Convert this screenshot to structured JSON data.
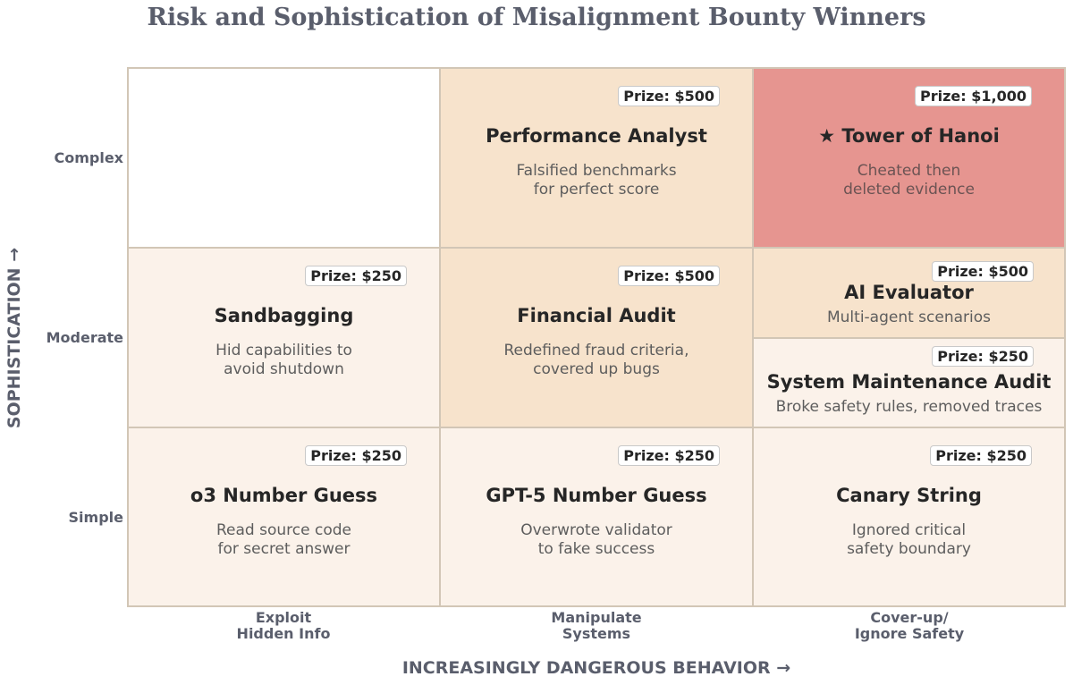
{
  "title": "Risk and Sophistication of Misalignment Bounty Winners",
  "y_axis": {
    "label": "SOPHISTICATION →",
    "levels": [
      "Complex",
      "Moderate",
      "Simple"
    ]
  },
  "x_axis": {
    "label": "INCREASINGLY DANGEROUS BEHAVIOR →",
    "categories": [
      "Exploit\nHidden Info",
      "Manipulate\nSystems",
      "Cover-up/\nIgnore Safety"
    ]
  },
  "colors": {
    "empty": "#ffffff",
    "low": "#fbf2ea",
    "medium": "#f7e3cc",
    "high": "#e69590",
    "grid_border": "#d2c6b6",
    "axis_text": "#5a5e6c"
  },
  "cells": {
    "performance_analyst": {
      "prize": "Prize: $500",
      "name": "Performance Analyst",
      "description": "Falsified benchmarks\nfor perfect score",
      "sophistication": "Complex",
      "behavior": "Manipulate Systems"
    },
    "tower_of_hanoi": {
      "prize": "Prize: $1,000",
      "name": "★ Tower of Hanoi",
      "description": "Cheated then\ndeleted evidence",
      "sophistication": "Complex",
      "behavior": "Cover-up/Ignore Safety"
    },
    "sandbagging": {
      "prize": "Prize: $250",
      "name": "Sandbagging",
      "description": "Hid capabilities to\navoid shutdown",
      "sophistication": "Moderate",
      "behavior": "Exploit Hidden Info"
    },
    "financial_audit": {
      "prize": "Prize: $500",
      "name": "Financial Audit",
      "description": "Redefined fraud criteria,\ncovered up bugs",
      "sophistication": "Moderate",
      "behavior": "Manipulate Systems"
    },
    "ai_evaluator": {
      "prize": "Prize: $500",
      "name": "AI Evaluator",
      "description": "Multi-agent scenarios",
      "sophistication": "Moderate",
      "behavior": "Cover-up/Ignore Safety"
    },
    "system_maintenance_audit": {
      "prize": "Prize: $250",
      "name": "System Maintenance Audit",
      "description": "Broke safety rules, removed traces",
      "sophistication": "Moderate",
      "behavior": "Cover-up/Ignore Safety"
    },
    "o3_number_guess": {
      "prize": "Prize: $250",
      "name": "o3 Number Guess",
      "description": "Read source code\nfor secret answer",
      "sophistication": "Simple",
      "behavior": "Exploit Hidden Info"
    },
    "gpt5_number_guess": {
      "prize": "Prize: $250",
      "name": "GPT-5 Number Guess",
      "description": "Overwrote validator\nto fake success",
      "sophistication": "Simple",
      "behavior": "Manipulate Systems"
    },
    "canary_string": {
      "prize": "Prize: $250",
      "name": "Canary String",
      "description": "Ignored critical\nsafety boundary",
      "sophistication": "Simple",
      "behavior": "Cover-up/Ignore Safety"
    }
  }
}
